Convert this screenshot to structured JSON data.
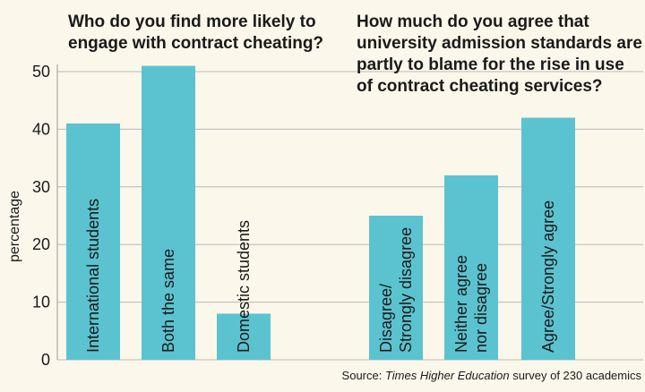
{
  "chart_data": {
    "type": "bar",
    "ylabel": "percentage",
    "ylim": [
      0,
      50
    ],
    "yticks": [
      0,
      10,
      20,
      30,
      40,
      50
    ],
    "grid": true,
    "bar_color": "#5bc3d0",
    "background": "#fbf7ea",
    "groups": [
      {
        "title_lines": [
          "Who do you find more likely to",
          "engage with contract cheating?"
        ],
        "bars": [
          {
            "label_lines": [
              "International students"
            ],
            "value": 41
          },
          {
            "label_lines": [
              "Both the same"
            ],
            "value": 51
          },
          {
            "label_lines": [
              "Domestic students"
            ],
            "value": 8
          }
        ]
      },
      {
        "title_lines": [
          "How much do you agree that",
          "university admission standards are",
          "partly to blame for the rise in use",
          "of contract cheating services?"
        ],
        "bars": [
          {
            "label_lines": [
              "Disagree/",
              "Strongly disagree"
            ],
            "value": 25
          },
          {
            "label_lines": [
              "Neither agree",
              "nor disagree"
            ],
            "value": 32
          },
          {
            "label_lines": [
              "Agree/Strongly agree"
            ],
            "value": 42
          }
        ]
      }
    ]
  },
  "source": {
    "prefix": "Source: ",
    "italic": "Times Higher Education",
    "suffix": " survey of 230 academics"
  }
}
